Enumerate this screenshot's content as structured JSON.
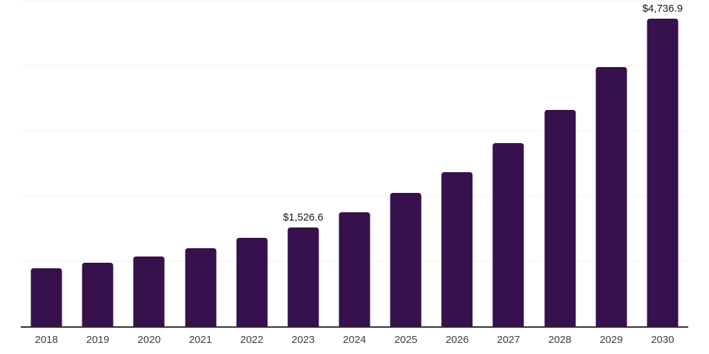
{
  "chart_data": {
    "type": "bar",
    "title": "",
    "xlabel": "",
    "ylabel": "",
    "categories": [
      "2018",
      "2019",
      "2020",
      "2021",
      "2022",
      "2023",
      "2024",
      "2025",
      "2026",
      "2027",
      "2028",
      "2029",
      "2030"
    ],
    "values": [
      890,
      975,
      1070,
      1200,
      1360,
      1526.6,
      1760,
      2055,
      2370,
      2815,
      3335,
      3985,
      4736.9
    ],
    "value_labels": [
      "",
      "",
      "",
      "",
      "",
      "$1,526.6",
      "",
      "",
      "",
      "",
      "",
      "",
      "$4,736.9"
    ],
    "ylim": [
      0,
      5000
    ],
    "gridline_values": [
      1000,
      2000,
      3000,
      4000,
      5000
    ],
    "grid": "horizontal-only",
    "legend": "none",
    "y_axis_tick_labels_visible": false,
    "colors": {
      "bar": "#36114C",
      "axis_line": "#2B2B2B",
      "gridline": "#F2F2F2",
      "tick_label": "#3D3D3D",
      "data_label": "#141414",
      "background": "#FFFFFF"
    }
  }
}
